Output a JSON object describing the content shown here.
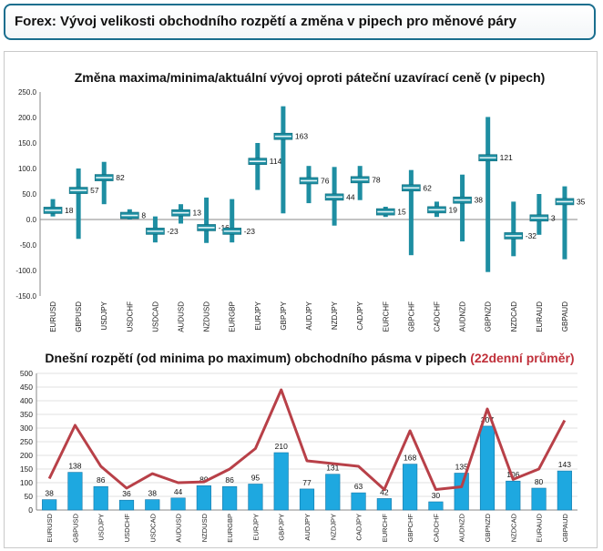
{
  "header": {
    "title": "Forex: Vývoj velikosti obchodního rozpětí a změna v pipech pro měnové páry"
  },
  "chart_data": [
    {
      "type": "range",
      "title": "Změna maxima/minima/aktuální vývoj oproti páteční uzavírací ceně (v pipech)",
      "ylim": [
        -150,
        250
      ],
      "yticks": [
        "250.0",
        "200.0",
        "150.0",
        "100.0",
        "50.0",
        "0.0",
        "-50.0",
        "-100.0",
        "-150.0"
      ],
      "categories": [
        "EURUSD",
        "GBPUSD",
        "USDJPY",
        "USDCHF",
        "USDCAD",
        "AUDUSD",
        "NZDUSD",
        "EURGBP",
        "EURJPY",
        "GBPJPY",
        "AUDJPY",
        "NZDJPY",
        "CADJPY",
        "EURCHF",
        "GBPCHF",
        "CADCHF",
        "AUDNZD",
        "GBPNZD",
        "NZDCAD",
        "EURAUD",
        "GBPAUD"
      ],
      "high": [
        40,
        100,
        113,
        20,
        6,
        30,
        43,
        40,
        150,
        222,
        105,
        103,
        105,
        25,
        97,
        35,
        88,
        201,
        35,
        50,
        65
      ],
      "low": [
        6,
        -38,
        30,
        0,
        -45,
        -8,
        -46,
        -45,
        58,
        12,
        32,
        -12,
        38,
        5,
        -70,
        5,
        -43,
        -103,
        -72,
        -30,
        -78
      ],
      "current": [
        18,
        57,
        82,
        8,
        -23,
        13,
        -16,
        -23,
        114,
        163,
        76,
        44,
        78,
        15,
        62,
        19,
        38,
        121,
        -32,
        3,
        35
      ],
      "labels": [
        "18",
        "57",
        "82",
        "8",
        "-23",
        "13",
        "-16",
        "-23",
        "114",
        "163",
        "76",
        "44",
        "78",
        "15",
        "62",
        "19",
        "38",
        "121",
        "-32",
        "3",
        "35"
      ],
      "colors": {
        "range": "#1e8ea2",
        "marker": "#1e8ea2"
      }
    },
    {
      "type": "bar",
      "title": "Dnešní rozpětí (od minima po maximum) obchodního pásma v pipech",
      "title_highlight": "(22denní průměr)",
      "ylim": [
        0,
        500
      ],
      "yticks": [
        "500",
        "450",
        "400",
        "350",
        "300",
        "250",
        "200",
        "150",
        "100",
        "50",
        "0"
      ],
      "categories": [
        "EURUSD",
        "GBPUSD",
        "USDJPY",
        "USDCHF",
        "USDCAD",
        "AUDUSD",
        "NZDUSD",
        "EURGBP",
        "EURJPY",
        "GBPJPY",
        "AUDJPY",
        "NZDJPY",
        "CADJPY",
        "EURCHF",
        "GBPCHF",
        "CADCHF",
        "AUDNZD",
        "GBPNZD",
        "NZDCAD",
        "EURAUD",
        "GBPAUD"
      ],
      "series": [
        {
          "values": [
            38,
            138,
            86,
            36,
            38,
            44,
            89,
            86,
            95,
            210,
            77,
            131,
            63,
            42,
            168,
            30,
            135,
            307,
            106,
            80,
            143
          ]
        },
        {
          "values": [
            115,
            310,
            160,
            80,
            133,
            100,
            103,
            150,
            225,
            440,
            180,
            170,
            160,
            75,
            290,
            75,
            85,
            370,
            112,
            150,
            328
          ]
        }
      ],
      "labels": [
        "38",
        "138",
        "86",
        "36",
        "38",
        "44",
        "89",
        "86",
        "95",
        "210",
        "77",
        "131",
        "63",
        "42",
        "168",
        "30",
        "135",
        "307",
        "106",
        "80",
        "143"
      ],
      "colors": {
        "bar": "#1ea8e0",
        "line": "#b84048",
        "highlight": "#c0303a"
      }
    }
  ]
}
